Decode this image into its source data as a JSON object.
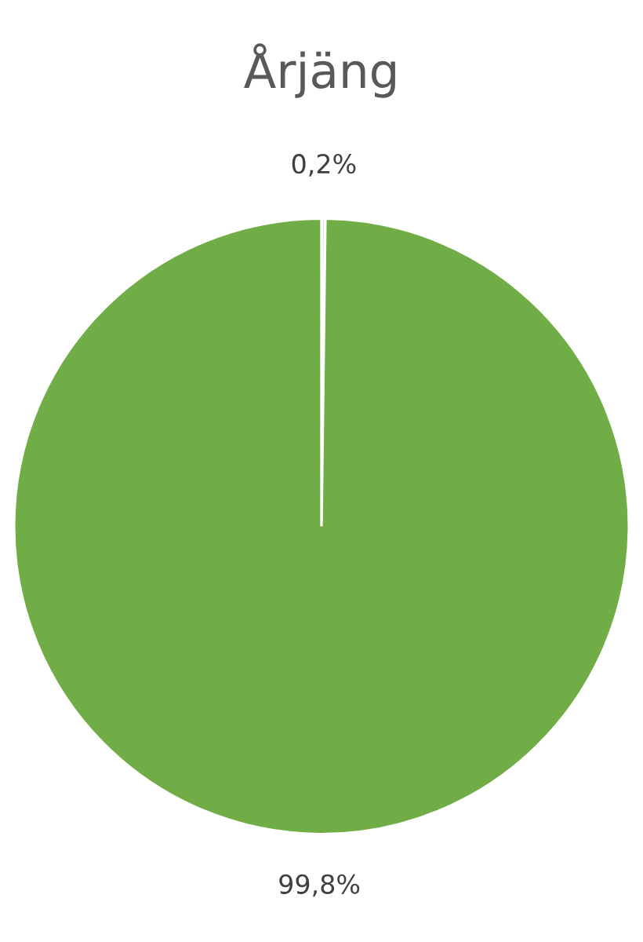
{
  "chart_data": {
    "type": "pie",
    "title": "Årjäng",
    "categories": [
      null,
      null
    ],
    "values": [
      0.2,
      99.8
    ],
    "colors": [
      "#e7e6e6",
      "#70ad47"
    ],
    "value_labels": [
      "0,2%",
      "99,8%"
    ],
    "legend": false
  }
}
